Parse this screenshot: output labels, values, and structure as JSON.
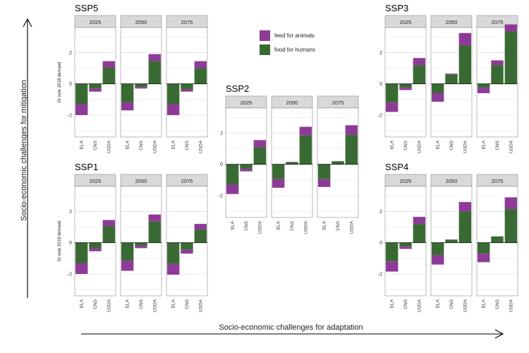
{
  "axis_titles": {
    "y": "Socio-economic challenges for mitigation",
    "x": "Socio-economic challenges for adaptation"
  },
  "legend": [
    {
      "label": "feed for animals",
      "color": "#8E3B98"
    },
    {
      "label": "food for humans",
      "color": "#3A6A33"
    }
  ],
  "colors": {
    "feed_for_animals": "#8E3B98",
    "food_for_humans": "#3A6A33",
    "strip_fill": "#D9D9D9",
    "grid": "#E0E0E0"
  },
  "chart_data": [
    {
      "type": "bar",
      "title": "SSP5",
      "ylabel": "GI over 2018 demand",
      "ylim": [
        -3.4,
        3.6
      ],
      "yticks": [
        -2,
        0,
        2
      ],
      "categories": [
        "ELA",
        "CNS",
        "USDA"
      ],
      "panels": [
        {
          "year": "2025",
          "food_for_humans": [
            -1.3,
            -0.3,
            1.05
          ],
          "feed_for_animals": [
            -0.7,
            -0.2,
            0.4
          ]
        },
        {
          "year": "2050",
          "food_for_humans": [
            -1.2,
            -0.2,
            1.45
          ],
          "feed_for_animals": [
            -0.5,
            -0.1,
            0.45
          ]
        },
        {
          "year": "2075",
          "food_for_humans": [
            -1.3,
            -0.35,
            1.0
          ],
          "feed_for_animals": [
            -0.7,
            -0.15,
            0.45
          ]
        }
      ]
    },
    {
      "type": "bar",
      "title": "SSP2",
      "ylabel": "",
      "ylim": [
        -3.4,
        3.6
      ],
      "yticks": [
        -2,
        0,
        2
      ],
      "categories": [
        "ELA",
        "CNS",
        "USDA"
      ],
      "panels": [
        {
          "year": "2025",
          "food_for_humans": [
            -1.3,
            -0.3,
            1.1
          ],
          "feed_for_animals": [
            -0.6,
            -0.15,
            0.45
          ]
        },
        {
          "year": "2050",
          "food_for_humans": [
            -0.95,
            0.15,
            1.85
          ],
          "feed_for_animals": [
            -0.55,
            0.0,
            0.55
          ]
        },
        {
          "year": "2075",
          "food_for_humans": [
            -0.95,
            0.2,
            1.9
          ],
          "feed_for_animals": [
            -0.5,
            0.0,
            0.6
          ]
        }
      ]
    },
    {
      "type": "bar",
      "title": "SSP3",
      "ylabel": "",
      "ylim": [
        -3.4,
        3.6
      ],
      "yticks": [
        -2,
        0,
        2
      ],
      "categories": [
        "ELA",
        "CNS",
        "USDA"
      ],
      "panels": [
        {
          "year": "2025",
          "food_for_humans": [
            -1.2,
            -0.25,
            1.2
          ],
          "feed_for_animals": [
            -0.6,
            -0.15,
            0.45
          ]
        },
        {
          "year": "2050",
          "food_for_humans": [
            -0.6,
            0.6,
            2.45
          ],
          "feed_for_animals": [
            -0.55,
            0.05,
            0.8
          ]
        },
        {
          "year": "2075",
          "food_for_humans": [
            -0.25,
            1.2,
            3.35
          ],
          "feed_for_animals": [
            -0.35,
            0.3,
            0.45
          ]
        }
      ]
    },
    {
      "type": "bar",
      "title": "SSP1",
      "ylabel": "GI over 2018 demand",
      "ylim": [
        -3.4,
        3.6
      ],
      "yticks": [
        -2,
        0,
        2
      ],
      "categories": [
        "ELA",
        "CNS",
        "USDA"
      ],
      "panels": [
        {
          "year": "2025",
          "food_for_humans": [
            -1.3,
            -0.35,
            1.05
          ],
          "feed_for_animals": [
            -0.7,
            -0.2,
            0.4
          ]
        },
        {
          "year": "2050",
          "food_for_humans": [
            -1.15,
            -0.2,
            1.35
          ],
          "feed_for_animals": [
            -0.65,
            -0.15,
            0.45
          ]
        },
        {
          "year": "2075",
          "food_for_humans": [
            -1.35,
            -0.45,
            0.85
          ],
          "feed_for_animals": [
            -0.7,
            -0.25,
            0.35
          ]
        }
      ]
    },
    {
      "type": "bar",
      "title": "SSP4",
      "ylabel": "",
      "ylim": [
        -3.4,
        3.6
      ],
      "yticks": [
        -2,
        0,
        2
      ],
      "categories": [
        "ELA",
        "CNS",
        "USDA"
      ],
      "panels": [
        {
          "year": "2025",
          "food_for_humans": [
            -1.2,
            -0.25,
            1.2
          ],
          "feed_for_animals": [
            -0.65,
            -0.15,
            0.45
          ]
        },
        {
          "year": "2050",
          "food_for_humans": [
            -0.8,
            0.2,
            2.0
          ],
          "feed_for_animals": [
            -0.6,
            0.0,
            0.6
          ]
        },
        {
          "year": "2075",
          "food_for_humans": [
            -0.7,
            0.4,
            2.15
          ],
          "feed_for_animals": [
            -0.55,
            0.0,
            0.75
          ]
        }
      ]
    }
  ]
}
